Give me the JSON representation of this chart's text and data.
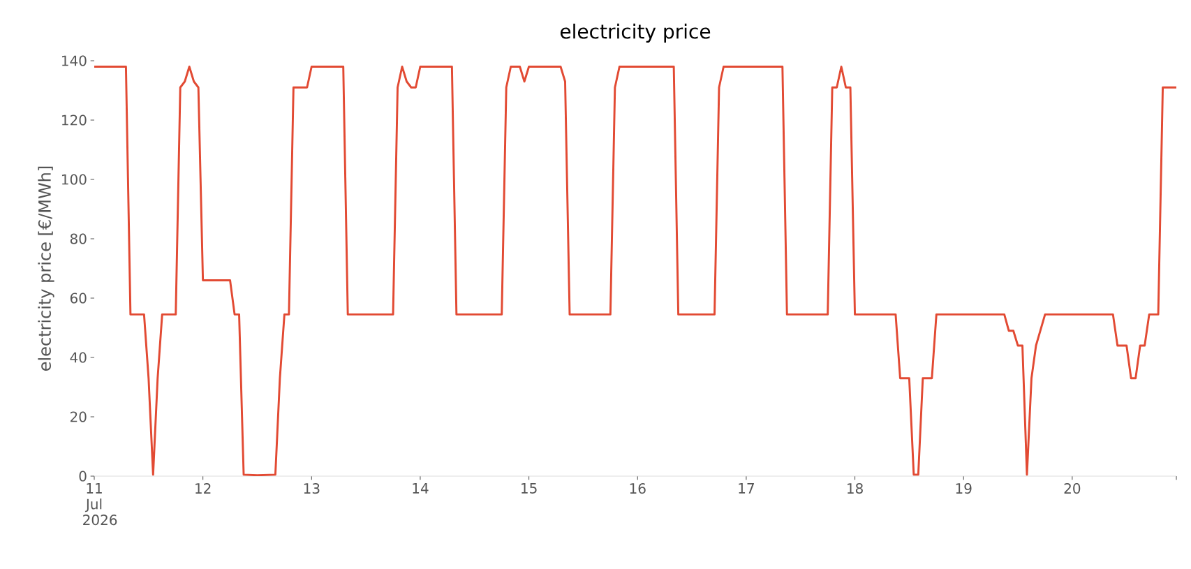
{
  "chart_data": {
    "type": "line",
    "title": "electricity price",
    "ylabel": "electricity price [€/MWh]",
    "color": "#e24a33",
    "x": [
      "2026-07-11T00:00",
      "2026-07-11T07:00",
      "2026-07-11T08:00",
      "2026-07-11T11:00",
      "2026-07-11T12:00",
      "2026-07-11T13:00",
      "2026-07-11T14:00",
      "2026-07-11T15:00",
      "2026-07-11T18:00",
      "2026-07-11T19:00",
      "2026-07-11T20:00",
      "2026-07-11T21:00",
      "2026-07-11T22:00",
      "2026-07-11T23:00",
      "2026-07-12T00:00",
      "2026-07-12T06:00",
      "2026-07-12T07:00",
      "2026-07-12T08:00",
      "2026-07-12T09:00",
      "2026-07-12T12:00",
      "2026-07-12T16:00",
      "2026-07-12T17:00",
      "2026-07-12T18:00",
      "2026-07-12T19:00",
      "2026-07-12T20:00",
      "2026-07-12T23:00",
      "2026-07-13T00:00",
      "2026-07-13T07:00",
      "2026-07-13T08:00",
      "2026-07-13T18:00",
      "2026-07-13T19:00",
      "2026-07-13T20:00",
      "2026-07-13T21:00",
      "2026-07-13T22:00",
      "2026-07-13T23:00",
      "2026-07-14T00:00",
      "2026-07-14T07:00",
      "2026-07-14T08:00",
      "2026-07-14T18:00",
      "2026-07-14T19:00",
      "2026-07-14T20:00",
      "2026-07-14T22:00",
      "2026-07-14T23:00",
      "2026-07-15T00:00",
      "2026-07-15T07:00",
      "2026-07-15T08:00",
      "2026-07-15T09:00",
      "2026-07-15T18:00",
      "2026-07-15T19:00",
      "2026-07-15T20:00",
      "2026-07-16T08:00",
      "2026-07-16T09:00",
      "2026-07-16T17:00",
      "2026-07-16T18:00",
      "2026-07-16T19:00",
      "2026-07-17T08:00",
      "2026-07-17T09:00",
      "2026-07-17T18:00",
      "2026-07-17T19:00",
      "2026-07-17T20:00",
      "2026-07-17T21:00",
      "2026-07-17T22:00",
      "2026-07-17T23:00",
      "2026-07-18T00:00",
      "2026-07-18T09:00",
      "2026-07-18T10:00",
      "2026-07-18T12:00",
      "2026-07-18T13:00",
      "2026-07-18T14:00",
      "2026-07-18T15:00",
      "2026-07-18T17:00",
      "2026-07-18T18:00",
      "2026-07-19T09:00",
      "2026-07-19T10:00",
      "2026-07-19T11:00",
      "2026-07-19T12:00",
      "2026-07-19T13:00",
      "2026-07-19T14:00",
      "2026-07-19T15:00",
      "2026-07-19T16:00",
      "2026-07-19T18:00",
      "2026-07-20T09:00",
      "2026-07-20T10:00",
      "2026-07-20T12:00",
      "2026-07-20T13:00",
      "2026-07-20T14:00",
      "2026-07-20T15:00",
      "2026-07-20T16:00",
      "2026-07-20T17:00",
      "2026-07-20T19:00",
      "2026-07-20T20:00",
      "2026-07-20T23:00"
    ],
    "values": [
      138,
      138,
      54.5,
      54.5,
      33,
      0.5,
      33,
      54.5,
      54.5,
      131,
      133,
      138,
      133,
      131,
      66,
      66,
      54.5,
      54.5,
      0.5,
      0.3,
      0.5,
      33,
      54.5,
      54.5,
      131,
      131,
      138,
      138,
      54.5,
      54.5,
      131,
      138,
      133,
      131,
      131,
      138,
      138,
      54.5,
      54.5,
      131,
      138,
      138,
      133,
      138,
      138,
      133,
      54.5,
      54.5,
      131,
      138,
      138,
      54.5,
      54.5,
      131,
      138,
      138,
      54.5,
      54.5,
      131,
      131,
      138,
      131,
      131,
      54.5,
      54.5,
      33,
      33,
      0.5,
      0.5,
      33,
      33,
      54.5,
      54.5,
      49,
      49,
      44,
      44,
      0.5,
      33,
      44,
      54.5,
      54.5,
      44,
      44,
      33,
      33,
      44,
      44,
      54.5,
      54.5,
      131,
      131
    ],
    "xlim": [
      "2026-07-11T00:00",
      "2026-07-20T23:00"
    ],
    "ylim": [
      0,
      140
    ],
    "xticks": [
      {
        "value": "2026-07-11",
        "label": "11 Jul 2026"
      },
      {
        "value": "2026-07-12",
        "label": "12"
      },
      {
        "value": "2026-07-13",
        "label": "13"
      },
      {
        "value": "2026-07-14",
        "label": "14"
      },
      {
        "value": "2026-07-15",
        "label": "15"
      },
      {
        "value": "2026-07-16",
        "label": "16"
      },
      {
        "value": "2026-07-17",
        "label": "17"
      },
      {
        "value": "2026-07-18",
        "label": "18"
      },
      {
        "value": "2026-07-19",
        "label": "19"
      },
      {
        "value": "2026-07-20",
        "label": "20"
      },
      {
        "value": "2026-07-20T23:00",
        "label": null
      }
    ],
    "yticks": [
      0,
      20,
      40,
      60,
      80,
      100,
      120,
      140
    ]
  }
}
